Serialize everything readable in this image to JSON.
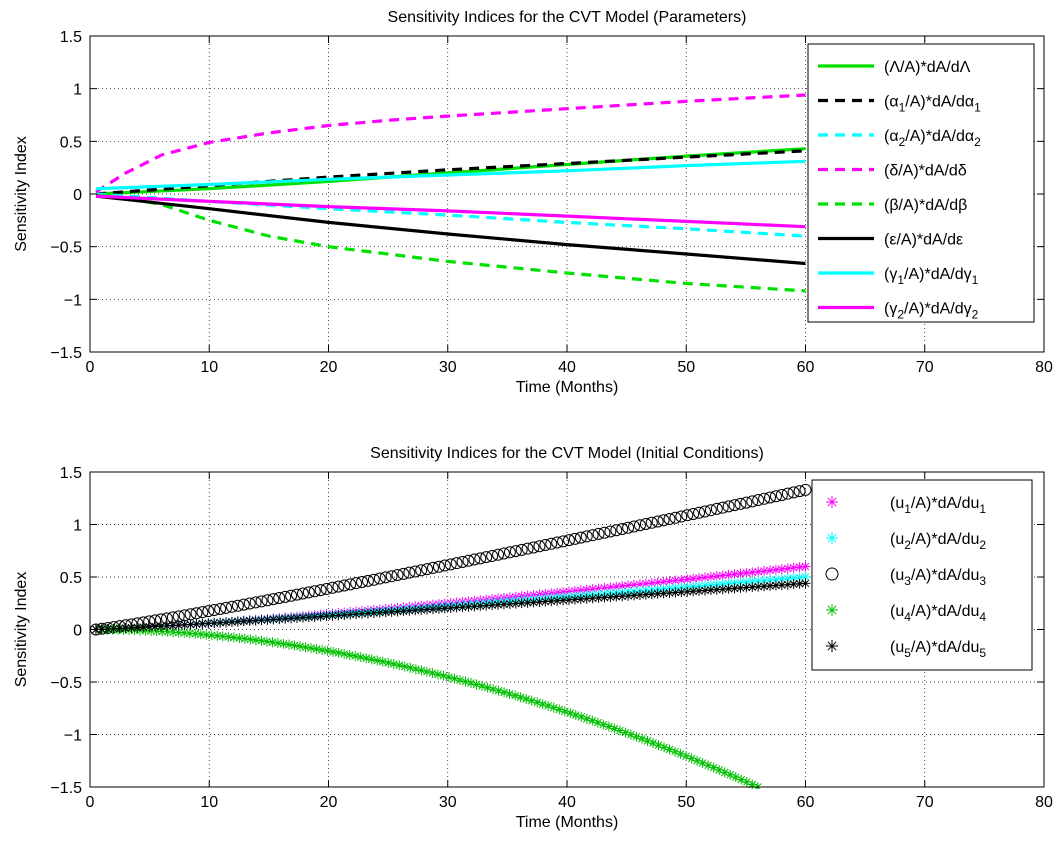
{
  "chart_data": [
    {
      "type": "line",
      "title": "Sensitivity Indices for the CVT Model (Parameters)",
      "xlabel": "Time (Months)",
      "ylabel": "Sensitivity Index",
      "xlim": [
        0,
        80
      ],
      "ylim": [
        -1.5,
        1.5
      ],
      "xticks": [
        0,
        10,
        20,
        30,
        40,
        50,
        60,
        70,
        80
      ],
      "yticks": [
        -1.5,
        -1,
        -0.5,
        0,
        0.5,
        1,
        1.5
      ],
      "xtick_labels": [
        "0",
        "10",
        "20",
        "30",
        "40",
        "50",
        "60",
        "70",
        "80"
      ],
      "ytick_labels": [
        "-1.5",
        "-1",
        "-0.5",
        "0",
        "0.5",
        "1",
        "1.5"
      ],
      "grid": true,
      "legend_position": "top-right",
      "series": [
        {
          "name": "(Λ/A)*dA/dΛ",
          "base": "(Λ/A)*dA/dΛ",
          "sub": "",
          "color": "#00e000",
          "style": "solid",
          "x": [
            0.5,
            10,
            20,
            30,
            40,
            50,
            60
          ],
          "y": [
            0.0,
            0.05,
            0.12,
            0.2,
            0.28,
            0.36,
            0.43
          ]
        },
        {
          "name": "(α1/A)*dA/dα1",
          "base": "(α",
          "sub": "1",
          "mid": "/A)*dA/dα",
          "sub2": "1",
          "color": "#000000",
          "style": "dashed",
          "x": [
            0.5,
            10,
            20,
            30,
            40,
            50,
            60
          ],
          "y": [
            0.0,
            0.08,
            0.16,
            0.23,
            0.29,
            0.35,
            0.41
          ]
        },
        {
          "name": "(α2/A)*dA/dα2",
          "base": "(α",
          "sub": "2",
          "mid": "/A)*dA/dα",
          "sub2": "2",
          "color": "#00ffff",
          "style": "dashed",
          "x": [
            0.5,
            10,
            20,
            30,
            40,
            50,
            60
          ],
          "y": [
            0.0,
            -0.07,
            -0.14,
            -0.2,
            -0.27,
            -0.33,
            -0.4
          ]
        },
        {
          "name": "(δ/A)*dA/dδ",
          "base": "(δ/A)*dA/dδ",
          "sub": "",
          "color": "#ff00ff",
          "style": "dashed",
          "x": [
            0.5,
            3,
            6,
            10,
            15,
            20,
            25,
            30,
            40,
            50,
            60
          ],
          "y": [
            0.02,
            0.2,
            0.37,
            0.49,
            0.58,
            0.65,
            0.7,
            0.74,
            0.81,
            0.88,
            0.94
          ]
        },
        {
          "name": "(β/A)*dA/dβ",
          "base": "(β/A)*dA/dβ",
          "sub": "",
          "color": "#00e000",
          "style": "dashed",
          "x": [
            0.5,
            3,
            6,
            10,
            15,
            20,
            30,
            40,
            50,
            60
          ],
          "y": [
            -0.01,
            -0.04,
            -0.1,
            -0.25,
            -0.4,
            -0.5,
            -0.64,
            -0.75,
            -0.85,
            -0.92
          ]
        },
        {
          "name": "(ε/A)*dA/dε",
          "base": "(ε/A)*dA/dε",
          "sub": "",
          "color": "#000000",
          "style": "solid",
          "x": [
            0.5,
            10,
            20,
            30,
            40,
            50,
            60
          ],
          "y": [
            -0.02,
            -0.14,
            -0.27,
            -0.38,
            -0.48,
            -0.57,
            -0.66
          ]
        },
        {
          "name": "(γ1/A)*dA/dγ1",
          "base": "(γ",
          "sub": "1",
          "mid": "/A)*dA/dγ",
          "sub2": "1",
          "color": "#00ffff",
          "style": "solid",
          "x": [
            0.5,
            10,
            20,
            30,
            40,
            50,
            60
          ],
          "y": [
            0.05,
            0.09,
            0.14,
            0.18,
            0.22,
            0.27,
            0.31
          ]
        },
        {
          "name": "(γ2/A)*dA/dγ2",
          "base": "(γ",
          "sub": "2",
          "mid": "/A)*dA/dγ",
          "sub2": "2",
          "color": "#ff00ff",
          "style": "solid",
          "x": [
            0.5,
            10,
            20,
            30,
            40,
            50,
            60
          ],
          "y": [
            -0.02,
            -0.07,
            -0.12,
            -0.16,
            -0.21,
            -0.26,
            -0.31
          ]
        }
      ]
    },
    {
      "type": "scatter",
      "title": "Sensitivity Indices for the CVT Model (Initial Conditions)",
      "xlabel": "Time (Months)",
      "ylabel": "Sensitivity Index",
      "xlim": [
        0,
        80
      ],
      "ylim": [
        -1.5,
        1.5
      ],
      "xticks": [
        0,
        10,
        20,
        30,
        40,
        50,
        60,
        70,
        80
      ],
      "yticks": [
        -1.5,
        -1,
        -0.5,
        0,
        0.5,
        1,
        1.5
      ],
      "xtick_labels": [
        "0",
        "10",
        "20",
        "30",
        "40",
        "50",
        "60",
        "70",
        "80"
      ],
      "ytick_labels": [
        "-1.5",
        "-1",
        "-0.5",
        "0",
        "0.5",
        "1",
        "1.5"
      ],
      "grid": true,
      "legend_position": "top-right",
      "series": [
        {
          "name": "(u1/A)*dA/du1",
          "base": "(u",
          "sub": "1",
          "mid": "/A)*dA/du",
          "sub2": "1",
          "color": "#ff00ff",
          "marker": "asterisk",
          "x_start": 0.5,
          "x_end": 60,
          "curve": "power",
          "y_end": 0.6,
          "exp": 1.25
        },
        {
          "name": "(u2/A)*dA/du2",
          "base": "(u",
          "sub": "2",
          "mid": "/A)*dA/du",
          "sub2": "2",
          "color": "#00ffff",
          "marker": "asterisk",
          "x_start": 0.5,
          "x_end": 60,
          "curve": "power",
          "y_end": 0.5,
          "exp": 1.15
        },
        {
          "name": "(u3/A)*dA/du3",
          "base": "(u",
          "sub": "3",
          "mid": "/A)*dA/du",
          "sub2": "3",
          "color": "#000000",
          "marker": "circle",
          "x_start": 0.5,
          "x_end": 60,
          "curve": "power",
          "y_end": 1.33,
          "exp": 1.1
        },
        {
          "name": "(u4/A)*dA/du4",
          "base": "(u",
          "sub": "4",
          "mid": "/A)*dA/du",
          "sub2": "4",
          "color": "#00c000",
          "marker": "asterisk",
          "x_start": 0.5,
          "x_end": 56,
          "curve": "power",
          "y_end": -1.5,
          "exp": 1.9
        },
        {
          "name": "(u5/A)*dA/du5",
          "base": "(u",
          "sub": "5",
          "mid": "/A)*dA/du",
          "sub2": "5",
          "color": "#000000",
          "marker": "asterisk",
          "x_start": 0.5,
          "x_end": 60,
          "curve": "power",
          "y_end": 0.44,
          "exp": 1.1
        }
      ]
    }
  ]
}
